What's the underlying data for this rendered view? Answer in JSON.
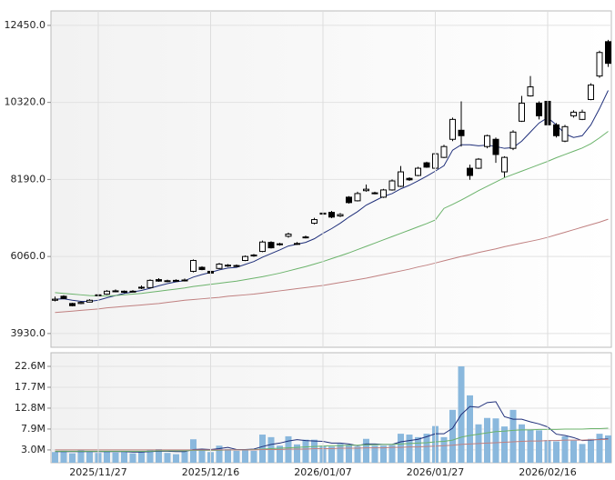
{
  "chart_data": [
    {
      "type": "candlestick",
      "open": [
        4850,
        4960,
        4760,
        4760,
        4800,
        4980,
        5020,
        5090,
        5100,
        5090,
        5190,
        5200,
        5420,
        5390,
        5380,
        5390,
        5650,
        5760,
        5650,
        5730,
        5800,
        5790,
        5950,
        6080,
        6200,
        6450,
        6390,
        6620,
        6410,
        6580,
        6980,
        7230,
        7280,
        7180,
        7700,
        7600,
        7880,
        7820,
        7700,
        7900,
        8000,
        8220,
        8300,
        8650,
        8500,
        8800,
        9300,
        9550,
        8500,
        8500,
        9100,
        9300,
        8400,
        9050,
        9800,
        10500,
        10300,
        10350,
        9700,
        9250,
        9950,
        9850,
        10400,
        11050,
        12000
      ],
      "high": [
        4950,
        4990,
        4780,
        4820,
        4880,
        5030,
        5130,
        5150,
        5120,
        5130,
        5260,
        5430,
        5460,
        5420,
        5430,
        5450,
        5980,
        5790,
        5680,
        5880,
        5850,
        5840,
        6090,
        6130,
        6500,
        6480,
        6440,
        6720,
        6460,
        6640,
        7130,
        7380,
        7320,
        7260,
        7730,
        7850,
        8050,
        7850,
        7930,
        8190,
        8560,
        8250,
        8540,
        8680,
        8960,
        9150,
        9900,
        10350,
        8600,
        8780,
        9430,
        9350,
        8830,
        9550,
        10500,
        11050,
        10350,
        10380,
        9750,
        9700,
        10100,
        10120,
        10850,
        11750,
        12050
      ],
      "low": [
        4820,
        4880,
        4680,
        4740,
        4790,
        4960,
        5000,
        5070,
        5050,
        5070,
        5160,
        5180,
        5360,
        5350,
        5360,
        5370,
        5620,
        5680,
        5580,
        5710,
        5770,
        5770,
        5930,
        6050,
        6180,
        6280,
        6360,
        6580,
        6380,
        6560,
        6950,
        7200,
        7120,
        7150,
        7520,
        7580,
        7850,
        7780,
        7680,
        7880,
        7980,
        8150,
        8280,
        8510,
        8480,
        8780,
        9250,
        9100,
        8180,
        8480,
        9050,
        8650,
        8250,
        9000,
        9780,
        10480,
        9850,
        9650,
        9350,
        9220,
        9900,
        9830,
        10380,
        11000,
        11300
      ],
      "close": [
        4880,
        4900,
        4700,
        4790,
        4850,
        5000,
        5100,
        5110,
        5070,
        5100,
        5210,
        5400,
        5380,
        5370,
        5400,
        5410,
        5950,
        5700,
        5600,
        5850,
        5820,
        5810,
        6060,
        6100,
        6460,
        6300,
        6410,
        6680,
        6420,
        6600,
        7080,
        7260,
        7150,
        7220,
        7550,
        7800,
        7920,
        7800,
        7900,
        8150,
        8400,
        8180,
        8500,
        8530,
        8900,
        9100,
        9850,
        9400,
        8300,
        8750,
        9400,
        8880,
        8800,
        9500,
        10300,
        10750,
        9950,
        9700,
        9400,
        9650,
        10050,
        10050,
        10800,
        11700,
        11400
      ],
      "series": [
        {
          "color": "#1f2f7a",
          "values": [
            4880,
            4890,
            4850,
            4820,
            4820,
            4850,
            4920,
            4980,
            5040,
            5080,
            5120,
            5180,
            5250,
            5310,
            5360,
            5390,
            5490,
            5560,
            5620,
            5690,
            5740,
            5760,
            5840,
            5920,
            6040,
            6140,
            6240,
            6350,
            6400,
            6450,
            6550,
            6700,
            6830,
            6980,
            7150,
            7300,
            7480,
            7600,
            7720,
            7800,
            7930,
            8030,
            8150,
            8280,
            8420,
            8570,
            9000,
            9150,
            9150,
            9120,
            9140,
            9100,
            9050,
            9070,
            9250,
            9500,
            9750,
            9900,
            9700,
            9450,
            9350,
            9400,
            9700,
            10150,
            10650
          ]
        },
        {
          "color": "#6bb36b",
          "values": [
            5060,
            5040,
            5020,
            5000,
            4980,
            4970,
            4970,
            4980,
            5000,
            5020,
            5040,
            5070,
            5100,
            5130,
            5160,
            5190,
            5230,
            5260,
            5290,
            5320,
            5350,
            5380,
            5420,
            5460,
            5500,
            5550,
            5600,
            5660,
            5720,
            5780,
            5850,
            5920,
            6000,
            6080,
            6160,
            6250,
            6340,
            6430,
            6520,
            6610,
            6700,
            6790,
            6880,
            6970,
            7070,
            7390,
            7500,
            7620,
            7750,
            7880,
            8000,
            8120,
            8240,
            8330,
            8420,
            8510,
            8600,
            8690,
            8790,
            8880,
            8970,
            9060,
            9180,
            9340,
            9520
          ]
        },
        {
          "color": "#c08080",
          "values": [
            4510,
            4530,
            4550,
            4570,
            4590,
            4610,
            4640,
            4660,
            4680,
            4700,
            4720,
            4740,
            4760,
            4790,
            4820,
            4850,
            4870,
            4890,
            4910,
            4930,
            4960,
            4980,
            5000,
            5020,
            5050,
            5080,
            5110,
            5140,
            5170,
            5200,
            5230,
            5260,
            5300,
            5340,
            5380,
            5420,
            5460,
            5510,
            5560,
            5610,
            5660,
            5710,
            5770,
            5820,
            5880,
            5940,
            6000,
            6060,
            6110,
            6170,
            6220,
            6270,
            6330,
            6380,
            6430,
            6480,
            6530,
            6590,
            6660,
            6730,
            6800,
            6870,
            6940,
            7010,
            7090
          ]
        }
      ],
      "ylim": [
        3550,
        12850
      ],
      "yticks": [
        {
          "value": 3930,
          "label": "3930.0"
        },
        {
          "value": 6060,
          "label": "6060.0"
        },
        {
          "value": 8190,
          "label": "8190.0"
        },
        {
          "value": 10320,
          "label": "10320.0"
        },
        {
          "value": 12450,
          "label": "12450.0"
        }
      ],
      "grid": true
    },
    {
      "type": "bar",
      "categories": [
        null,
        null,
        null,
        null,
        null,
        "2025/11/27",
        null,
        null,
        null,
        null,
        null,
        null,
        null,
        null,
        null,
        null,
        null,
        null,
        "2025/12/16",
        null,
        null,
        null,
        null,
        null,
        null,
        null,
        null,
        null,
        null,
        null,
        null,
        "2026/01/07",
        null,
        null,
        null,
        null,
        null,
        null,
        null,
        null,
        null,
        null,
        null,
        null,
        "2026/01/27",
        null,
        null,
        null,
        null,
        null,
        null,
        null,
        null,
        null,
        null,
        null,
        null,
        "2026/02/16",
        null,
        null,
        null,
        null,
        null,
        null,
        null
      ],
      "values": [
        2.5,
        2.8,
        2.2,
        3.0,
        2.5,
        2.3,
        2.6,
        2.4,
        2.5,
        2.2,
        2.6,
        3.1,
        3.2,
        2.3,
        2.0,
        2.6,
        5.5,
        3.0,
        2.5,
        4.0,
        3.2,
        2.8,
        3.2,
        2.8,
        6.6,
        6.0,
        4.0,
        6.2,
        4.3,
        5.4,
        5.4,
        4.0,
        3.8,
        4.4,
        4.2,
        3.8,
        5.6,
        4.0,
        4.0,
        4.1,
        6.8,
        6.6,
        6.0,
        6.8,
        8.6,
        6.0,
        12.4,
        22.6,
        15.8,
        9.0,
        10.5,
        10.4,
        8.5,
        12.4,
        9.0,
        7.8,
        7.6,
        5.3,
        5.0,
        6.2,
        5.2,
        4.4,
        5.6,
        6.8,
        6.4
      ],
      "color": "#8ab8dd",
      "series": [
        {
          "color": "#1f2f7a",
          "values": [
            2.6,
            2.6,
            2.6,
            2.6,
            2.6,
            2.6,
            2.6,
            2.6,
            2.6,
            2.5,
            2.5,
            2.6,
            2.7,
            2.7,
            2.6,
            2.6,
            3.1,
            3.2,
            3.1,
            3.3,
            3.6,
            3.1,
            3.1,
            3.2,
            3.8,
            4.3,
            4.6,
            5.1,
            5.4,
            5.2,
            5.1,
            5.0,
            4.6,
            4.6,
            4.4,
            4.0,
            4.4,
            4.4,
            4.3,
            4.3,
            4.9,
            5.2,
            5.5,
            6.1,
            6.8,
            6.8,
            8.1,
            11.3,
            13.2,
            13.0,
            14.1,
            14.3,
            10.8,
            10.2,
            10.2,
            9.6,
            9.1,
            8.4,
            6.7,
            6.4,
            5.9,
            5.2,
            5.3,
            5.5,
            5.6
          ]
        },
        {
          "color": "#6bb36b",
          "values": [
            2.7,
            2.7,
            2.7,
            2.7,
            2.7,
            2.7,
            2.7,
            2.7,
            2.7,
            2.7,
            2.7,
            2.7,
            2.8,
            2.8,
            2.8,
            2.8,
            2.9,
            2.9,
            2.9,
            2.9,
            3.0,
            3.0,
            3.0,
            3.1,
            3.2,
            3.3,
            3.4,
            3.5,
            3.6,
            3.7,
            3.8,
            3.9,
            4.0,
            4.0,
            4.1,
            4.1,
            4.2,
            4.2,
            4.3,
            4.3,
            4.4,
            4.5,
            4.6,
            4.7,
            4.9,
            5.0,
            5.3,
            6.0,
            6.4,
            6.7,
            7.0,
            7.3,
            7.4,
            7.6,
            7.7,
            7.7,
            7.8,
            7.8,
            7.8,
            7.9,
            7.9,
            7.9,
            8.0,
            8.0,
            8.1
          ]
        },
        {
          "color": "#c08080",
          "values": [
            3.0,
            3.0,
            3.0,
            3.0,
            3.0,
            3.0,
            3.0,
            3.0,
            3.0,
            3.0,
            3.0,
            3.0,
            3.0,
            3.0,
            3.0,
            3.0,
            3.0,
            3.0,
            3.0,
            3.0,
            3.0,
            3.0,
            3.0,
            3.0,
            3.1,
            3.1,
            3.1,
            3.2,
            3.2,
            3.2,
            3.3,
            3.3,
            3.3,
            3.4,
            3.4,
            3.4,
            3.5,
            3.5,
            3.5,
            3.6,
            3.6,
            3.7,
            3.7,
            3.8,
            3.9,
            4.0,
            4.1,
            4.3,
            4.4,
            4.5,
            4.6,
            4.7,
            4.8,
            4.9,
            5.0,
            5.1,
            5.1,
            5.2,
            5.2,
            5.3,
            5.3,
            5.3,
            5.4,
            5.4,
            5.5
          ]
        }
      ],
      "ylim": [
        0,
        25.8
      ],
      "yticks": [
        {
          "value": 3.0,
          "label": "3.0M"
        },
        {
          "value": 7.9,
          "label": "7.9M"
        },
        {
          "value": 12.8,
          "label": "12.8M"
        },
        {
          "value": 17.7,
          "label": "17.7M"
        },
        {
          "value": 22.6,
          "label": "22.6M"
        }
      ],
      "grid": true
    }
  ]
}
